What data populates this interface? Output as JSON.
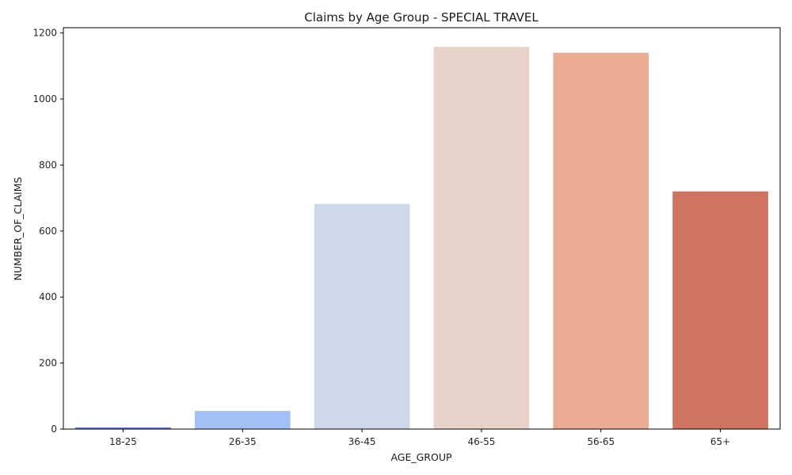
{
  "chart_data": {
    "type": "bar",
    "title": "Claims by Age Group - SPECIAL TRAVEL",
    "xlabel": "AGE_GROUP",
    "ylabel": "NUMBER_OF_CLAIMS",
    "categories": [
      "18-25",
      "26-35",
      "36-45",
      "46-55",
      "56-65",
      "65+"
    ],
    "values": [
      5,
      55,
      682,
      1158,
      1140,
      720
    ],
    "ylim": [
      0,
      1216
    ],
    "yticks": [
      0,
      200,
      400,
      600,
      800,
      1000,
      1200
    ],
    "colors": [
      "#5b7be0",
      "#a3c0f6",
      "#cdd8eb",
      "#e8d3c9",
      "#eaac93",
      "#d07462"
    ],
    "grid": false,
    "legend": "none"
  }
}
